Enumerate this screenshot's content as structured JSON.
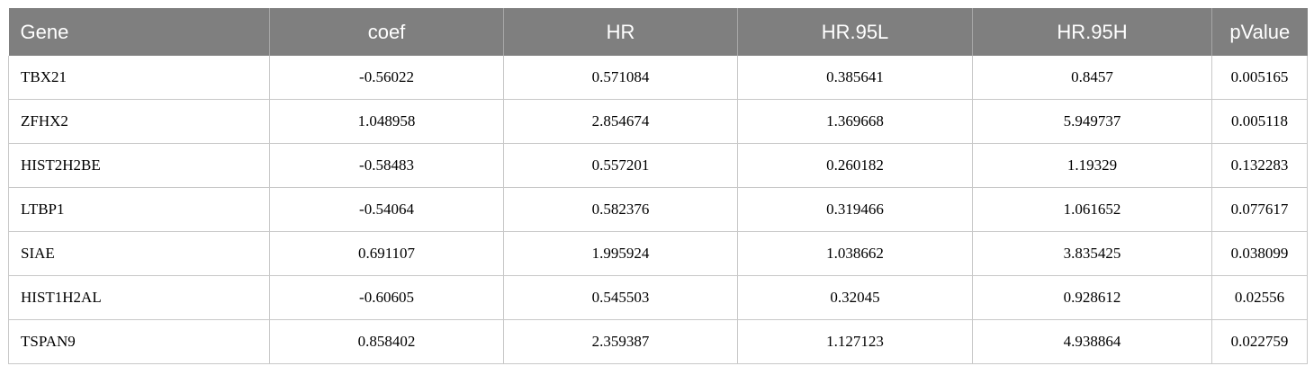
{
  "table": {
    "headers": [
      "Gene",
      "coef",
      "HR",
      "HR.95L",
      "HR.95H",
      "pValue"
    ],
    "rows": [
      [
        "TBX21",
        "-0.56022",
        "0.571084",
        "0.385641",
        "0.8457",
        "0.005165"
      ],
      [
        "ZFHX2",
        "1.048958",
        "2.854674",
        "1.369668",
        "5.949737",
        "0.005118"
      ],
      [
        "HIST2H2BE",
        "-0.58483",
        "0.557201",
        "0.260182",
        "1.19329",
        "0.132283"
      ],
      [
        "LTBP1",
        "-0.54064",
        "0.582376",
        "0.319466",
        "1.061652",
        "0.077617"
      ],
      [
        "SIAE",
        "0.691107",
        "1.995924",
        "1.038662",
        "3.835425",
        "0.038099"
      ],
      [
        "HIST1H2AL",
        "-0.60605",
        "0.545503",
        "0.32045",
        "0.928612",
        "0.02556"
      ],
      [
        "TSPAN9",
        "0.858402",
        "2.359387",
        "1.127123",
        "4.938864",
        "0.022759"
      ]
    ]
  },
  "colors": {
    "header_bg": "#7f7f7f",
    "header_text": "#ffffff",
    "grid": "#c8c8c8"
  }
}
